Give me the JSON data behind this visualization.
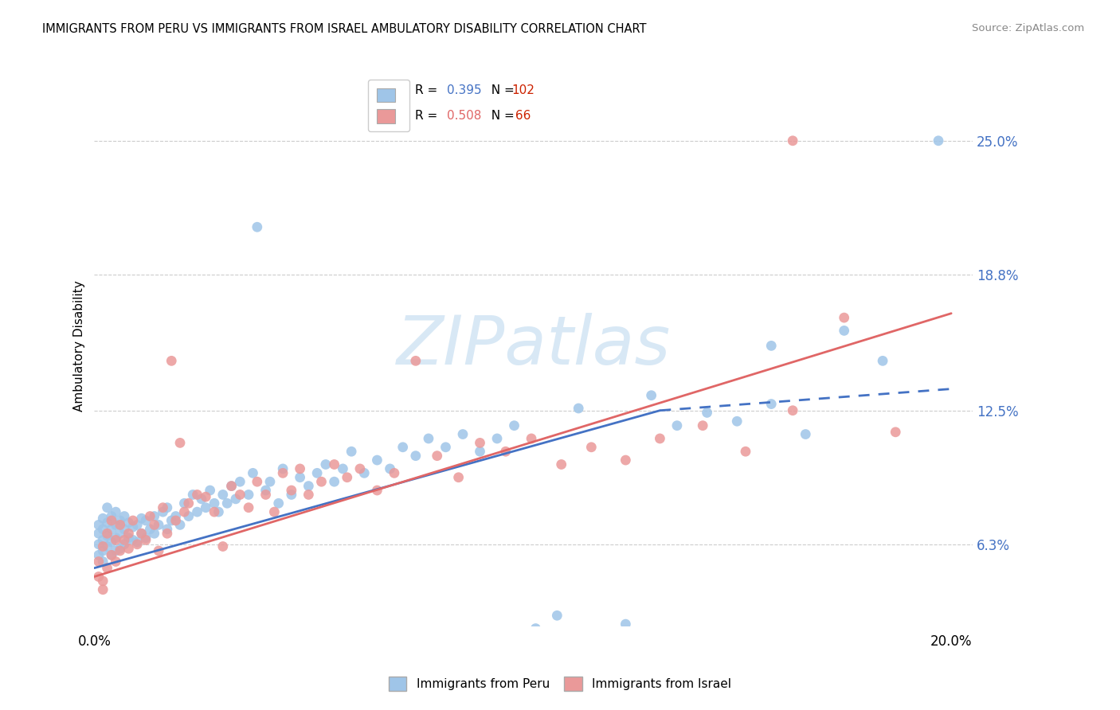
{
  "title": "IMMIGRANTS FROM PERU VS IMMIGRANTS FROM ISRAEL AMBULATORY DISABILITY CORRELATION CHART",
  "source": "Source: ZipAtlas.com",
  "ylabel": "Ambulatory Disability",
  "ytick_labels": [
    "6.3%",
    "12.5%",
    "18.8%",
    "25.0%"
  ],
  "ytick_values": [
    0.063,
    0.125,
    0.188,
    0.25
  ],
  "xtick_labels": [
    "0.0%",
    "20.0%"
  ],
  "xtick_values": [
    0.0,
    0.2
  ],
  "xlim": [
    0.0,
    0.205
  ],
  "ylim": [
    0.025,
    0.285
  ],
  "r_peru": 0.395,
  "n_peru": 102,
  "r_israel": 0.508,
  "n_israel": 66,
  "color_peru": "#9fc5e8",
  "color_israel": "#ea9999",
  "color_peru_line": "#4472c4",
  "color_israel_line": "#e06666",
  "color_r_peru": "#4472c4",
  "color_r_israel": "#e06666",
  "color_n": "#cc2200",
  "watermark_text": "ZIPatlas",
  "watermark_color": "#d8e8f5",
  "peru_line_start_x": 0.0,
  "peru_line_start_y": 0.052,
  "peru_line_solid_end_x": 0.132,
  "peru_line_solid_end_y": 0.125,
  "peru_line_end_x": 0.2,
  "peru_line_end_y": 0.135,
  "israel_line_start_x": 0.0,
  "israel_line_start_y": 0.048,
  "israel_line_end_x": 0.2,
  "israel_line_end_y": 0.17,
  "peru_x": [
    0.001,
    0.001,
    0.001,
    0.001,
    0.002,
    0.002,
    0.002,
    0.002,
    0.002,
    0.003,
    0.003,
    0.003,
    0.003,
    0.004,
    0.004,
    0.004,
    0.004,
    0.005,
    0.005,
    0.005,
    0.005,
    0.006,
    0.006,
    0.006,
    0.007,
    0.007,
    0.007,
    0.008,
    0.008,
    0.009,
    0.009,
    0.01,
    0.01,
    0.011,
    0.011,
    0.012,
    0.012,
    0.013,
    0.014,
    0.014,
    0.015,
    0.016,
    0.017,
    0.017,
    0.018,
    0.019,
    0.02,
    0.021,
    0.022,
    0.023,
    0.024,
    0.025,
    0.026,
    0.027,
    0.028,
    0.029,
    0.03,
    0.031,
    0.032,
    0.033,
    0.034,
    0.036,
    0.037,
    0.038,
    0.04,
    0.041,
    0.043,
    0.044,
    0.046,
    0.048,
    0.05,
    0.052,
    0.054,
    0.056,
    0.058,
    0.06,
    0.063,
    0.066,
    0.069,
    0.072,
    0.075,
    0.078,
    0.082,
    0.086,
    0.09,
    0.094,
    0.098,
    0.103,
    0.108,
    0.113,
    0.118,
    0.124,
    0.13,
    0.136,
    0.143,
    0.15,
    0.158,
    0.166,
    0.175,
    0.184,
    0.158,
    0.197
  ],
  "peru_y": [
    0.063,
    0.068,
    0.072,
    0.058,
    0.06,
    0.065,
    0.07,
    0.055,
    0.075,
    0.062,
    0.067,
    0.073,
    0.08,
    0.058,
    0.064,
    0.07,
    0.076,
    0.06,
    0.066,
    0.072,
    0.078,
    0.061,
    0.068,
    0.074,
    0.063,
    0.07,
    0.076,
    0.066,
    0.073,
    0.065,
    0.071,
    0.064,
    0.072,
    0.068,
    0.075,
    0.066,
    0.074,
    0.07,
    0.068,
    0.076,
    0.072,
    0.078,
    0.07,
    0.08,
    0.074,
    0.076,
    0.072,
    0.082,
    0.076,
    0.086,
    0.078,
    0.084,
    0.08,
    0.088,
    0.082,
    0.078,
    0.086,
    0.082,
    0.09,
    0.084,
    0.092,
    0.086,
    0.096,
    0.21,
    0.088,
    0.092,
    0.082,
    0.098,
    0.086,
    0.094,
    0.09,
    0.096,
    0.1,
    0.092,
    0.098,
    0.106,
    0.096,
    0.102,
    0.098,
    0.108,
    0.104,
    0.112,
    0.108,
    0.114,
    0.106,
    0.112,
    0.118,
    0.024,
    0.03,
    0.126,
    0.022,
    0.026,
    0.132,
    0.118,
    0.124,
    0.12,
    0.128,
    0.114,
    0.162,
    0.148,
    0.155,
    0.25
  ],
  "israel_x": [
    0.001,
    0.001,
    0.002,
    0.002,
    0.002,
    0.003,
    0.003,
    0.004,
    0.004,
    0.005,
    0.005,
    0.006,
    0.006,
    0.007,
    0.008,
    0.008,
    0.009,
    0.01,
    0.011,
    0.012,
    0.013,
    0.014,
    0.015,
    0.016,
    0.017,
    0.018,
    0.019,
    0.02,
    0.021,
    0.022,
    0.024,
    0.026,
    0.028,
    0.03,
    0.032,
    0.034,
    0.036,
    0.038,
    0.04,
    0.042,
    0.044,
    0.046,
    0.048,
    0.05,
    0.053,
    0.056,
    0.059,
    0.062,
    0.066,
    0.07,
    0.075,
    0.08,
    0.085,
    0.09,
    0.096,
    0.102,
    0.109,
    0.116,
    0.124,
    0.132,
    0.142,
    0.152,
    0.163,
    0.175,
    0.187,
    0.163
  ],
  "israel_y": [
    0.048,
    0.055,
    0.046,
    0.062,
    0.042,
    0.052,
    0.068,
    0.058,
    0.074,
    0.055,
    0.065,
    0.06,
    0.072,
    0.065,
    0.061,
    0.068,
    0.074,
    0.063,
    0.068,
    0.065,
    0.076,
    0.072,
    0.06,
    0.08,
    0.068,
    0.148,
    0.074,
    0.11,
    0.078,
    0.082,
    0.086,
    0.085,
    0.078,
    0.062,
    0.09,
    0.086,
    0.08,
    0.092,
    0.086,
    0.078,
    0.096,
    0.088,
    0.098,
    0.086,
    0.092,
    0.1,
    0.094,
    0.098,
    0.088,
    0.096,
    0.148,
    0.104,
    0.094,
    0.11,
    0.106,
    0.112,
    0.1,
    0.108,
    0.102,
    0.112,
    0.118,
    0.106,
    0.125,
    0.168,
    0.115,
    0.25
  ]
}
